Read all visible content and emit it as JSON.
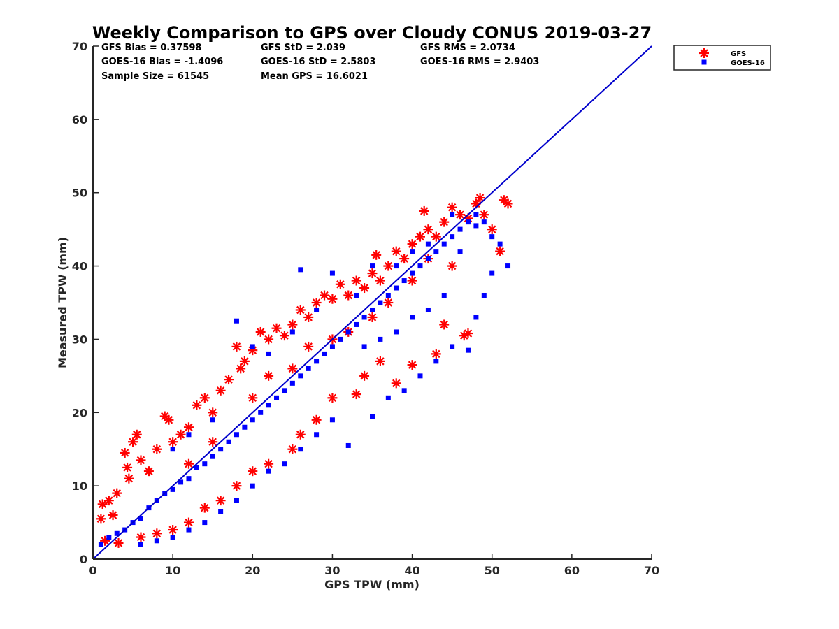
{
  "chart_data": {
    "type": "scatter",
    "title": "Weekly Comparison to GPS over Cloudy CONUS 2019-03-27",
    "xlabel": "GPS TPW (mm)",
    "ylabel": "Measured TPW (mm)",
    "xlim": [
      0,
      70
    ],
    "ylim": [
      0,
      70
    ],
    "xticks": [
      0,
      10,
      20,
      30,
      40,
      50,
      60,
      70
    ],
    "yticks": [
      0,
      10,
      20,
      30,
      40,
      50,
      60,
      70
    ],
    "grid": false,
    "legend_position": "outside-top-right",
    "stats": [
      {
        "label": "GFS Bias = 0.37598"
      },
      {
        "label": "GFS StD = 2.039"
      },
      {
        "label": "GFS RMS = 2.0734"
      },
      {
        "label": "GOES-16 Bias = -1.4096"
      },
      {
        "label": "GOES-16 StD = 2.5803"
      },
      {
        "label": "GOES-16 RMS = 2.9403"
      },
      {
        "label": "Sample Size = 61545"
      },
      {
        "label": "Mean GPS = 16.6021"
      }
    ],
    "reference_line": {
      "x": [
        0,
        70
      ],
      "y": [
        0,
        70
      ],
      "color": "#0000cc"
    },
    "series": [
      {
        "name": "GFS",
        "marker": "asterisk",
        "color": "#ff0000",
        "points": [
          [
            1,
            5.5
          ],
          [
            1.2,
            7.5
          ],
          [
            1.5,
            2.5
          ],
          [
            2,
            8
          ],
          [
            2.5,
            6
          ],
          [
            3,
            9
          ],
          [
            3.2,
            2.2
          ],
          [
            4,
            14.5
          ],
          [
            4.3,
            12.5
          ],
          [
            4.5,
            11
          ],
          [
            5,
            16
          ],
          [
            5.5,
            17
          ],
          [
            6,
            13.5
          ],
          [
            7,
            12
          ],
          [
            8,
            15
          ],
          [
            9,
            19.5
          ],
          [
            9.5,
            19
          ],
          [
            10,
            16
          ],
          [
            11,
            17
          ],
          [
            12,
            18
          ],
          [
            13,
            21
          ],
          [
            14,
            22
          ],
          [
            15,
            20
          ],
          [
            16,
            23
          ],
          [
            17,
            24.5
          ],
          [
            18,
            29
          ],
          [
            18.5,
            26
          ],
          [
            19,
            27
          ],
          [
            20,
            28.5
          ],
          [
            21,
            31
          ],
          [
            22,
            30
          ],
          [
            23,
            31.5
          ],
          [
            24,
            30.5
          ],
          [
            25,
            32
          ],
          [
            26,
            34
          ],
          [
            27,
            33
          ],
          [
            28,
            35
          ],
          [
            29,
            36
          ],
          [
            30,
            35.5
          ],
          [
            31,
            37.5
          ],
          [
            32,
            36
          ],
          [
            33,
            38
          ],
          [
            34,
            37
          ],
          [
            35,
            39
          ],
          [
            35.5,
            41.5
          ],
          [
            36,
            38
          ],
          [
            37,
            40
          ],
          [
            38,
            42
          ],
          [
            39,
            41
          ],
          [
            40,
            43
          ],
          [
            41,
            44
          ],
          [
            41.5,
            47.5
          ],
          [
            42,
            45
          ],
          [
            43,
            44
          ],
          [
            44,
            46
          ],
          [
            45,
            48
          ],
          [
            46,
            47
          ],
          [
            47,
            46.5
          ],
          [
            48,
            48.5
          ],
          [
            48.5,
            49.3
          ],
          [
            49,
            47
          ],
          [
            50,
            45
          ],
          [
            51,
            42
          ],
          [
            51.5,
            49
          ],
          [
            52,
            48.5
          ],
          [
            46.5,
            30.5
          ],
          [
            47,
            30.8
          ],
          [
            44,
            32
          ],
          [
            43,
            28
          ],
          [
            40,
            26.5
          ],
          [
            38,
            24
          ],
          [
            36,
            27
          ],
          [
            34,
            25
          ],
          [
            33,
            22.5
          ],
          [
            30,
            22
          ],
          [
            28,
            19
          ],
          [
            26,
            17
          ],
          [
            25,
            15
          ],
          [
            22,
            13
          ],
          [
            20,
            12
          ],
          [
            18,
            10
          ],
          [
            16,
            8
          ],
          [
            14,
            7
          ],
          [
            12,
            5
          ],
          [
            10,
            4
          ],
          [
            8,
            3.5
          ],
          [
            6,
            3
          ],
          [
            20,
            22
          ],
          [
            25,
            26
          ],
          [
            30,
            30
          ],
          [
            35,
            33
          ],
          [
            40,
            38
          ],
          [
            45,
            40
          ],
          [
            22,
            25
          ],
          [
            27,
            29
          ],
          [
            32,
            31
          ],
          [
            37,
            35
          ],
          [
            42,
            41
          ],
          [
            12,
            13
          ],
          [
            15,
            16
          ]
        ]
      },
      {
        "name": "GOES-16",
        "marker": "square",
        "color": "#0000ff",
        "points": [
          [
            1,
            2
          ],
          [
            2,
            3
          ],
          [
            3,
            3.5
          ],
          [
            4,
            4
          ],
          [
            5,
            5
          ],
          [
            6,
            5.5
          ],
          [
            7,
            7
          ],
          [
            8,
            8
          ],
          [
            9,
            9
          ],
          [
            10,
            9.5
          ],
          [
            11,
            10.5
          ],
          [
            12,
            11
          ],
          [
            13,
            12.5
          ],
          [
            14,
            13
          ],
          [
            15,
            14
          ],
          [
            16,
            15
          ],
          [
            17,
            16
          ],
          [
            18,
            17
          ],
          [
            19,
            18
          ],
          [
            20,
            19
          ],
          [
            21,
            20
          ],
          [
            22,
            21
          ],
          [
            23,
            22
          ],
          [
            24,
            23
          ],
          [
            25,
            24
          ],
          [
            26,
            25
          ],
          [
            27,
            26
          ],
          [
            28,
            27
          ],
          [
            29,
            28
          ],
          [
            30,
            29
          ],
          [
            31,
            30
          ],
          [
            32,
            31
          ],
          [
            33,
            32
          ],
          [
            34,
            33
          ],
          [
            35,
            34
          ],
          [
            36,
            35
          ],
          [
            37,
            36
          ],
          [
            38,
            37
          ],
          [
            39,
            38
          ],
          [
            40,
            39
          ],
          [
            41,
            40
          ],
          [
            42,
            41
          ],
          [
            43,
            42
          ],
          [
            44,
            43
          ],
          [
            45,
            44
          ],
          [
            46,
            45
          ],
          [
            47,
            46
          ],
          [
            48,
            47
          ],
          [
            49,
            46
          ],
          [
            50,
            44
          ],
          [
            52,
            40
          ],
          [
            51,
            43
          ],
          [
            50,
            39
          ],
          [
            49,
            36
          ],
          [
            48,
            33
          ],
          [
            47,
            28.5
          ],
          [
            45,
            29
          ],
          [
            43,
            27
          ],
          [
            41,
            25
          ],
          [
            39,
            23
          ],
          [
            37,
            22
          ],
          [
            35,
            19.5
          ],
          [
            32,
            15.5
          ],
          [
            30,
            19
          ],
          [
            28,
            17
          ],
          [
            26,
            15
          ],
          [
            24,
            13
          ],
          [
            22,
            12
          ],
          [
            20,
            10
          ],
          [
            18,
            8
          ],
          [
            16,
            6.5
          ],
          [
            14,
            5
          ],
          [
            12,
            4
          ],
          [
            10,
            3
          ],
          [
            8,
            2.5
          ],
          [
            6,
            2
          ],
          [
            18,
            32.5
          ],
          [
            20,
            29
          ],
          [
            26,
            39.5
          ],
          [
            30,
            39
          ],
          [
            35,
            40
          ],
          [
            40,
            42
          ],
          [
            45,
            47
          ],
          [
            48,
            45.5
          ],
          [
            10,
            15
          ],
          [
            12,
            17
          ],
          [
            15,
            19
          ],
          [
            22,
            28
          ],
          [
            25,
            31
          ],
          [
            28,
            34
          ],
          [
            33,
            36
          ],
          [
            38,
            40
          ],
          [
            42,
            43
          ],
          [
            46,
            42
          ],
          [
            44,
            36
          ],
          [
            42,
            34
          ],
          [
            40,
            33
          ],
          [
            38,
            31
          ],
          [
            36,
            30
          ],
          [
            34,
            29
          ]
        ]
      }
    ]
  }
}
